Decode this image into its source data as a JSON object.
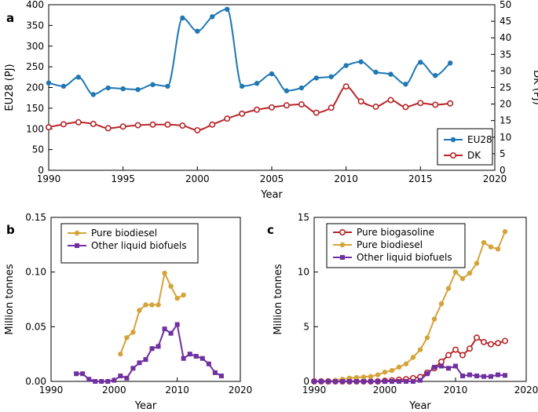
{
  "colors": {
    "blue": "#1f77b4",
    "red": "#b8262a",
    "gold": "#d4a43a",
    "purple": "#7030a0"
  },
  "chart_data": [
    {
      "id": "a",
      "panel_label": "a",
      "type": "line",
      "xlabel": "Year",
      "ylabel": "EU28 (PJ)",
      "ylabel_right": "DK (PJ)",
      "xlim": [
        1990,
        2020
      ],
      "ylim": [
        0,
        400
      ],
      "ylim_right": [
        0,
        50
      ],
      "xticks": [
        1990,
        1995,
        2000,
        2005,
        2010,
        2015,
        2020
      ],
      "yticks": [
        0,
        50,
        100,
        150,
        200,
        250,
        300,
        350,
        400
      ],
      "yticks_right": [
        0,
        5,
        10,
        15,
        20,
        25,
        30,
        35,
        40,
        45,
        50
      ],
      "legend_position": "bottom-right",
      "series": [
        {
          "name": "EU28",
          "axis": "left",
          "color": "blue",
          "marker": "filled",
          "x": [
            1990,
            1991,
            1992,
            1993,
            1994,
            1995,
            1996,
            1997,
            1998,
            1999,
            2000,
            2001,
            2002,
            2003,
            2004,
            2005,
            2006,
            2007,
            2008,
            2009,
            2010,
            2011,
            2012,
            2013,
            2014,
            2015,
            2016,
            2017
          ],
          "values": [
            211,
            203,
            225,
            183,
            199,
            197,
            195,
            207,
            203,
            368,
            336,
            371,
            389,
            203,
            210,
            233,
            192,
            199,
            223,
            226,
            253,
            262,
            237,
            232,
            208,
            261,
            229,
            259
          ]
        },
        {
          "name": "DK",
          "axis": "right",
          "color": "red",
          "marker": "open",
          "x": [
            1990,
            1991,
            1992,
            1993,
            1994,
            1995,
            1996,
            1997,
            1998,
            1999,
            2000,
            2001,
            2002,
            2003,
            2004,
            2005,
            2006,
            2007,
            2008,
            2009,
            2010,
            2011,
            2012,
            2013,
            2014,
            2015,
            2016,
            2017
          ],
          "values": [
            13.0,
            13.9,
            14.5,
            14.0,
            12.7,
            13.2,
            13.6,
            13.8,
            13.8,
            13.5,
            12.1,
            13.8,
            15.6,
            17.1,
            18.3,
            19.0,
            19.6,
            19.9,
            17.4,
            18.9,
            25.3,
            20.8,
            19.2,
            21.2,
            19.1,
            20.3,
            19.8,
            20.2
          ]
        }
      ]
    },
    {
      "id": "b",
      "panel_label": "b",
      "type": "line",
      "xlabel": "Year",
      "ylabel": "Million tonnes",
      "xlim": [
        1990,
        2020
      ],
      "ylim": [
        0,
        0.15
      ],
      "xticks": [
        1990,
        2000,
        2010,
        2020
      ],
      "ytick_labels": [
        "0.00",
        "0.05",
        "0.10",
        "0.15"
      ],
      "yticks": [
        0,
        0.05,
        0.1,
        0.15
      ],
      "legend_position": "top-left",
      "series": [
        {
          "name": "Pure biodiesel",
          "color": "gold",
          "marker": "circle",
          "x": [
            2001,
            2002,
            2003,
            2004,
            2005,
            2006,
            2007,
            2008,
            2009,
            2010,
            2011
          ],
          "values": [
            0.025,
            0.04,
            0.045,
            0.065,
            0.07,
            0.07,
            0.07,
            0.099,
            0.087,
            0.076,
            0.079
          ]
        },
        {
          "name": "Other liquid biofuels",
          "color": "purple",
          "marker": "square",
          "x": [
            1994,
            1995,
            1996,
            1997,
            1998,
            1999,
            2000,
            2001,
            2002,
            2003,
            2004,
            2005,
            2006,
            2007,
            2008,
            2009,
            2010,
            2011,
            2012,
            2013,
            2014,
            2015,
            2016,
            2017
          ],
          "values": [
            0.007,
            0.007,
            0.002,
            0.0,
            0.0,
            0.0,
            0.001,
            0.005,
            0.003,
            0.012,
            0.017,
            0.02,
            0.03,
            0.032,
            0.048,
            0.044,
            0.052,
            0.021,
            0.025,
            0.023,
            0.021,
            0.016,
            0.008,
            0.005
          ]
        }
      ]
    },
    {
      "id": "c",
      "panel_label": "c",
      "type": "line",
      "xlabel": "Year",
      "ylabel": "Million tonnes",
      "xlim": [
        1990,
        2020
      ],
      "ylim": [
        0,
        15
      ],
      "xticks": [
        1990,
        2000,
        2010,
        2020
      ],
      "yticks": [
        0,
        5,
        10,
        15
      ],
      "legend_position": "top-left",
      "series": [
        {
          "name": "Pure biogasoline",
          "color": "red",
          "marker": "open",
          "x": [
            1990,
            1991,
            1992,
            1993,
            1994,
            1995,
            1996,
            1997,
            1998,
            1999,
            2000,
            2001,
            2002,
            2003,
            2004,
            2005,
            2006,
            2007,
            2008,
            2009,
            2010,
            2011,
            2012,
            2013,
            2014,
            2015,
            2016,
            2017
          ],
          "values": [
            0,
            0,
            0,
            0,
            0,
            0,
            0,
            0,
            0,
            0,
            0.05,
            0.1,
            0.15,
            0.2,
            0.3,
            0.4,
            0.8,
            1.2,
            1.8,
            2.4,
            2.9,
            2.4,
            3.0,
            4.0,
            3.6,
            3.4,
            3.5,
            3.7
          ]
        },
        {
          "name": "Pure biodiesel",
          "color": "gold",
          "marker": "circle",
          "x": [
            1990,
            1991,
            1992,
            1993,
            1994,
            1995,
            1996,
            1997,
            1998,
            1999,
            2000,
            2001,
            2002,
            2003,
            2004,
            2005,
            2006,
            2007,
            2008,
            2009,
            2010,
            2011,
            2012,
            2013,
            2014,
            2015,
            2016,
            2017
          ],
          "values": [
            0,
            0,
            0,
            0.1,
            0.2,
            0.3,
            0.35,
            0.4,
            0.45,
            0.6,
            0.85,
            1.0,
            1.3,
            1.6,
            2.2,
            2.9,
            4.0,
            5.7,
            7.1,
            8.5,
            10.0,
            9.4,
            9.9,
            10.8,
            12.7,
            12.3,
            12.1,
            13.7
          ]
        },
        {
          "name": "Other liquid biofuels",
          "color": "purple",
          "marker": "square",
          "x": [
            1990,
            1991,
            1992,
            1993,
            1994,
            1995,
            1996,
            1997,
            1998,
            1999,
            2000,
            2001,
            2002,
            2003,
            2004,
            2005,
            2006,
            2007,
            2008,
            2009,
            2010,
            2011,
            2012,
            2013,
            2014,
            2015,
            2016,
            2017
          ],
          "values": [
            0,
            0,
            0,
            0,
            0,
            0,
            0,
            0,
            0,
            0,
            0,
            0,
            0,
            0,
            0,
            0.1,
            0.7,
            1.3,
            1.4,
            1.2,
            1.4,
            0.5,
            0.6,
            0.5,
            0.45,
            0.45,
            0.6,
            0.55
          ]
        }
      ]
    }
  ]
}
